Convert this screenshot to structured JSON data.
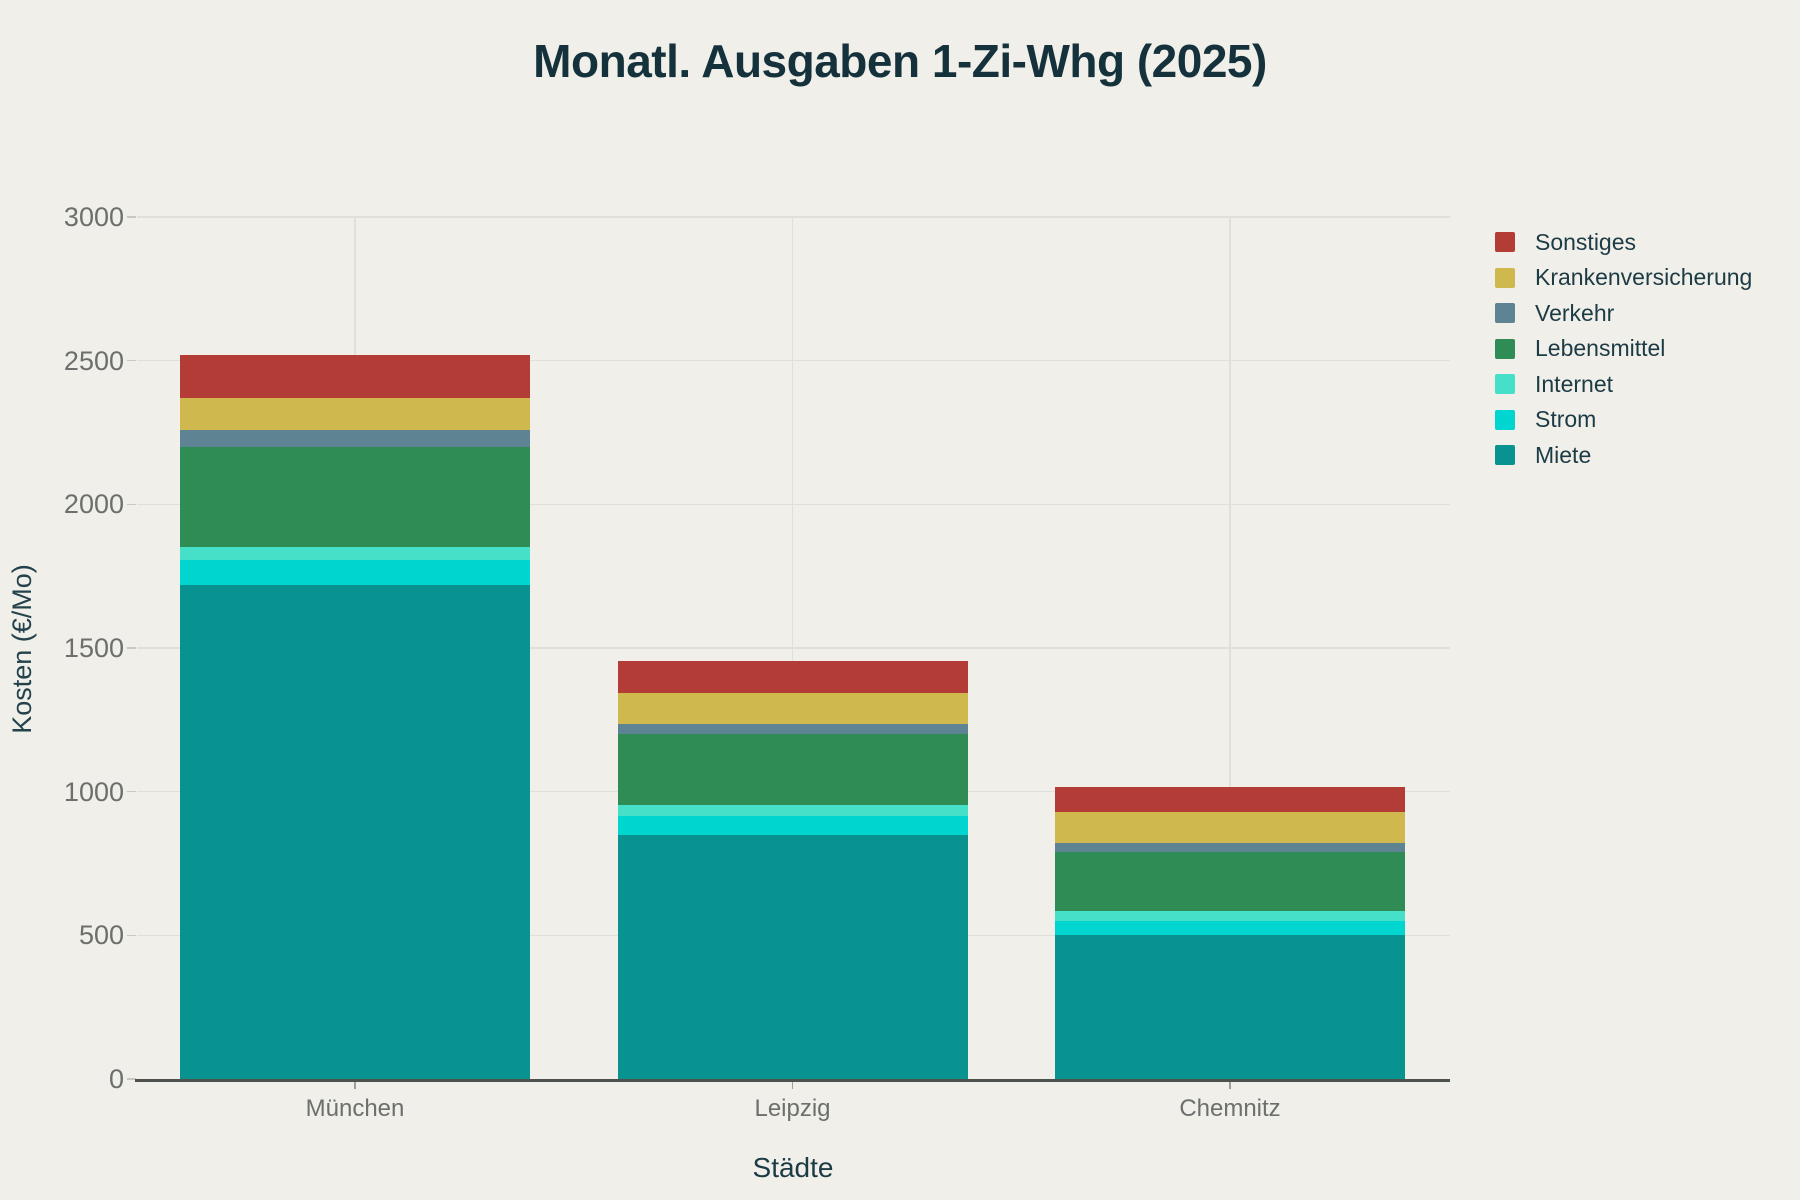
{
  "chart_data": {
    "type": "bar",
    "stacked": true,
    "title": "Monatl. Ausgaben 1-Zi-Whg (2025)",
    "xlabel": "Städte",
    "ylabel": "Kosten (€/Mo)",
    "categories": [
      "München",
      "Leipzig",
      "Chemnitz"
    ],
    "series": [
      {
        "name": "Miete",
        "color": "#089390",
        "values": [
          1720,
          850,
          500
        ]
      },
      {
        "name": "Strom",
        "color": "#00d5d0",
        "values": [
          85,
          65,
          50
        ]
      },
      {
        "name": "Internet",
        "color": "#45e0c7",
        "values": [
          45,
          40,
          35
        ]
      },
      {
        "name": "Lebensmittel",
        "color": "#2f8c55",
        "values": [
          350,
          245,
          205
        ]
      },
      {
        "name": "Verkehr",
        "color": "#5e8493",
        "values": [
          60,
          35,
          30
        ]
      },
      {
        "name": "Krankenversicherung",
        "color": "#cfb84d",
        "values": [
          110,
          110,
          110
        ]
      },
      {
        "name": "Sonstiges",
        "color": "#b33d36",
        "values": [
          150,
          110,
          85
        ]
      }
    ],
    "totals": [
      2520,
      1455,
      1015
    ],
    "ylim": [
      0,
      3000
    ],
    "yticks": [
      0,
      500,
      1000,
      1500,
      2000,
      2500,
      3000
    ],
    "grid": true,
    "legend_position": "right",
    "legend_order_top_first": [
      "Sonstiges",
      "Krankenversicherung",
      "Verkehr",
      "Lebensmittel",
      "Internet",
      "Strom",
      "Miete"
    ]
  },
  "ui_colors": {
    "background": "#f0efe9",
    "title_text": "#15323c",
    "axis_title_text": "#23424c",
    "tick_text": "#6c6f6d",
    "legend_text": "#1c3b45",
    "gridline": "#dee0d9",
    "axis_line": "#4d524f"
  }
}
